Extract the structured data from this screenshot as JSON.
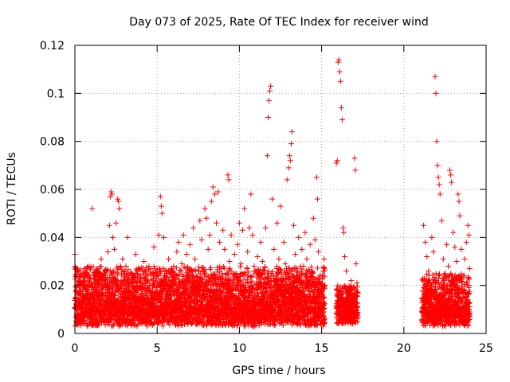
{
  "chart_data": {
    "type": "scatter",
    "title": "Day 073 of 2025, Rate Of TEC Index for receiver wind",
    "xlabel": "GPS time / hours",
    "ylabel": "ROTI / TECUs",
    "xlim": [
      0,
      25
    ],
    "ylim": [
      0,
      0.12
    ],
    "x_ticks": [
      0,
      5,
      10,
      15,
      20,
      25
    ],
    "y_ticks": [
      0,
      0.02,
      0.04,
      0.06,
      0.08,
      0.1,
      0.12
    ],
    "x_tick_labels": [
      "0",
      "5",
      "10",
      "15",
      "20",
      "25"
    ],
    "y_tick_labels": [
      "0",
      "0.02",
      "0.04",
      "0.06",
      "0.08",
      "0.1",
      "0.12"
    ],
    "grid": true,
    "marker": "+",
    "marker_color": "#ff0000",
    "series": [
      {
        "points": [
          [
            0.0,
            0.033
          ],
          [
            0.1,
            0.012
          ],
          [
            0.2,
            0.026
          ],
          [
            0.3,
            0.018
          ],
          [
            0.4,
            0.014
          ],
          [
            0.5,
            0.022
          ],
          [
            0.6,
            0.009
          ],
          [
            0.7,
            0.016
          ],
          [
            0.8,
            0.028
          ],
          [
            0.9,
            0.013
          ],
          [
            1.0,
            0.019
          ],
          [
            1.05,
            0.052
          ],
          [
            1.1,
            0.011
          ],
          [
            1.2,
            0.024
          ],
          [
            1.3,
            0.015
          ],
          [
            1.4,
            0.021
          ],
          [
            1.5,
            0.008
          ],
          [
            1.6,
            0.031
          ],
          [
            1.7,
            0.017
          ],
          [
            1.8,
            0.012
          ],
          [
            1.9,
            0.026
          ],
          [
            2.0,
            0.034
          ],
          [
            2.1,
            0.045
          ],
          [
            2.15,
            0.057
          ],
          [
            2.2,
            0.059
          ],
          [
            2.25,
            0.058
          ],
          [
            2.3,
            0.04
          ],
          [
            2.4,
            0.035
          ],
          [
            2.5,
            0.046
          ],
          [
            2.6,
            0.056
          ],
          [
            2.65,
            0.055
          ],
          [
            2.7,
            0.052
          ],
          [
            2.8,
            0.022
          ],
          [
            2.9,
            0.031
          ],
          [
            3.0,
            0.018
          ],
          [
            3.1,
            0.028
          ],
          [
            3.2,
            0.04
          ],
          [
            3.3,
            0.016
          ],
          [
            3.4,
            0.024
          ],
          [
            3.5,
            0.011
          ],
          [
            3.6,
            0.02
          ],
          [
            3.7,
            0.033
          ],
          [
            3.8,
            0.014
          ],
          [
            3.9,
            0.027
          ],
          [
            4.0,
            0.009
          ],
          [
            4.1,
            0.019
          ],
          [
            4.2,
            0.03
          ],
          [
            4.3,
            0.013
          ],
          [
            4.4,
            0.022
          ],
          [
            4.5,
            0.028
          ],
          [
            4.6,
            0.012
          ],
          [
            4.7,
            0.025
          ],
          [
            4.8,
            0.036
          ],
          [
            4.9,
            0.017
          ],
          [
            5.0,
            0.01
          ],
          [
            5.1,
            0.041
          ],
          [
            5.2,
            0.057
          ],
          [
            5.25,
            0.053
          ],
          [
            5.3,
            0.05
          ],
          [
            5.4,
            0.04
          ],
          [
            5.5,
            0.014
          ],
          [
            5.6,
            0.025
          ],
          [
            5.7,
            0.031
          ],
          [
            5.8,
            0.016
          ],
          [
            5.9,
            0.022
          ],
          [
            6.0,
            0.028
          ],
          [
            6.1,
            0.013
          ],
          [
            6.2,
            0.034
          ],
          [
            6.3,
            0.038
          ],
          [
            6.4,
            0.019
          ],
          [
            6.5,
            0.029
          ],
          [
            6.6,
            0.041
          ],
          [
            6.7,
            0.015
          ],
          [
            6.8,
            0.033
          ],
          [
            6.9,
            0.024
          ],
          [
            7.0,
            0.037
          ],
          [
            7.1,
            0.021
          ],
          [
            7.2,
            0.044
          ],
          [
            7.3,
            0.031
          ],
          [
            7.4,
            0.012
          ],
          [
            7.5,
            0.026
          ],
          [
            7.6,
            0.047
          ],
          [
            7.7,
            0.039
          ],
          [
            7.8,
            0.018
          ],
          [
            7.9,
            0.052
          ],
          [
            8.0,
            0.048
          ],
          [
            8.1,
            0.035
          ],
          [
            8.2,
            0.041
          ],
          [
            8.3,
            0.055
          ],
          [
            8.4,
            0.061
          ],
          [
            8.5,
            0.058
          ],
          [
            8.6,
            0.046
          ],
          [
            8.7,
            0.059
          ],
          [
            8.8,
            0.038
          ],
          [
            8.9,
            0.027
          ],
          [
            9.0,
            0.043
          ],
          [
            9.1,
            0.035
          ],
          [
            9.2,
            0.022
          ],
          [
            9.3,
            0.066
          ],
          [
            9.35,
            0.064
          ],
          [
            9.4,
            0.03
          ],
          [
            9.5,
            0.041
          ],
          [
            9.6,
            0.018
          ],
          [
            9.7,
            0.033
          ],
          [
            9.8,
            0.025
          ],
          [
            9.9,
            0.037
          ],
          [
            10.0,
            0.046
          ],
          [
            10.1,
            0.029
          ],
          [
            10.2,
            0.043
          ],
          [
            10.3,
            0.052
          ],
          [
            10.4,
            0.021
          ],
          [
            10.5,
            0.034
          ],
          [
            10.6,
            0.044
          ],
          [
            10.7,
            0.058
          ],
          [
            10.8,
            0.041
          ],
          [
            10.9,
            0.028
          ],
          [
            11.0,
            0.019
          ],
          [
            11.1,
            0.032
          ],
          [
            11.2,
            0.025
          ],
          [
            11.3,
            0.038
          ],
          [
            11.4,
            0.03
          ],
          [
            11.5,
            0.021
          ],
          [
            11.6,
            0.044
          ],
          [
            11.7,
            0.074
          ],
          [
            11.75,
            0.09
          ],
          [
            11.8,
            0.097
          ],
          [
            11.85,
            0.101
          ],
          [
            11.9,
            0.103
          ],
          [
            12.0,
            0.056
          ],
          [
            12.1,
            0.035
          ],
          [
            12.2,
            0.022
          ],
          [
            12.3,
            0.046
          ],
          [
            12.4,
            0.031
          ],
          [
            12.5,
            0.053
          ],
          [
            12.6,
            0.017
          ],
          [
            12.7,
            0.038
          ],
          [
            12.8,
            0.029
          ],
          [
            12.9,
            0.064
          ],
          [
            13.0,
            0.069
          ],
          [
            13.05,
            0.074
          ],
          [
            13.1,
            0.072
          ],
          [
            13.15,
            0.079
          ],
          [
            13.2,
            0.084
          ],
          [
            13.3,
            0.045
          ],
          [
            13.4,
            0.033
          ],
          [
            13.5,
            0.026
          ],
          [
            13.6,
            0.04
          ],
          [
            13.7,
            0.019
          ],
          [
            13.8,
            0.035
          ],
          [
            13.9,
            0.028
          ],
          [
            14.0,
            0.042
          ],
          [
            14.1,
            0.031
          ],
          [
            14.2,
            0.02
          ],
          [
            14.3,
            0.037
          ],
          [
            14.4,
            0.026
          ],
          [
            14.5,
            0.048
          ],
          [
            14.6,
            0.039
          ],
          [
            14.7,
            0.065
          ],
          [
            14.75,
            0.056
          ],
          [
            14.8,
            0.034
          ],
          [
            14.9,
            0.021
          ],
          [
            15.0,
            0.017
          ],
          [
            15.05,
            0.024
          ],
          [
            15.1,
            0.012
          ],
          [
            15.15,
            0.031
          ],
          [
            16.0,
            0.113
          ],
          [
            16.05,
            0.114
          ],
          [
            16.1,
            0.109
          ],
          [
            16.15,
            0.105
          ],
          [
            16.2,
            0.094
          ],
          [
            16.25,
            0.089
          ],
          [
            15.9,
            0.071
          ],
          [
            15.95,
            0.072
          ],
          [
            16.3,
            0.044
          ],
          [
            16.35,
            0.042
          ],
          [
            16.4,
            0.032
          ],
          [
            16.5,
            0.026
          ],
          [
            16.6,
            0.018
          ],
          [
            16.7,
            0.011
          ],
          [
            16.8,
            0.022
          ],
          [
            16.9,
            0.016
          ],
          [
            17.0,
            0.073
          ],
          [
            17.05,
            0.068
          ],
          [
            17.1,
            0.029
          ],
          [
            17.15,
            0.021
          ],
          [
            21.2,
            0.045
          ],
          [
            21.3,
            0.038
          ],
          [
            21.4,
            0.032
          ],
          [
            21.5,
            0.026
          ],
          [
            21.6,
            0.021
          ],
          [
            21.7,
            0.04
          ],
          [
            21.8,
            0.034
          ],
          [
            21.9,
            0.107
          ],
          [
            21.95,
            0.1
          ],
          [
            22.0,
            0.08
          ],
          [
            22.05,
            0.07
          ],
          [
            22.1,
            0.065
          ],
          [
            22.15,
            0.062
          ],
          [
            22.2,
            0.058
          ],
          [
            22.3,
            0.047
          ],
          [
            22.4,
            0.031
          ],
          [
            22.5,
            0.025
          ],
          [
            22.6,
            0.037
          ],
          [
            22.7,
            0.028
          ],
          [
            22.8,
            0.068
          ],
          [
            22.85,
            0.066
          ],
          [
            22.9,
            0.063
          ],
          [
            23.0,
            0.042
          ],
          [
            23.1,
            0.036
          ],
          [
            23.2,
            0.03
          ],
          [
            23.3,
            0.058
          ],
          [
            23.35,
            0.055
          ],
          [
            23.4,
            0.049
          ],
          [
            23.5,
            0.035
          ],
          [
            23.6,
            0.024
          ],
          [
            23.7,
            0.031
          ],
          [
            23.8,
            0.038
          ],
          [
            23.9,
            0.045
          ],
          [
            23.95,
            0.041
          ],
          [
            24.0,
            0.027
          ]
        ]
      }
    ],
    "dense_band": {
      "description": "continuous cloud of ROTI values",
      "segments": [
        {
          "x_from": 0.0,
          "x_to": 15.2,
          "y_low": 0.003,
          "y_high": 0.028
        },
        {
          "x_from": 15.9,
          "x_to": 17.2,
          "y_low": 0.004,
          "y_high": 0.02
        },
        {
          "x_from": 21.1,
          "x_to": 24.0,
          "y_low": 0.003,
          "y_high": 0.025
        }
      ]
    }
  }
}
